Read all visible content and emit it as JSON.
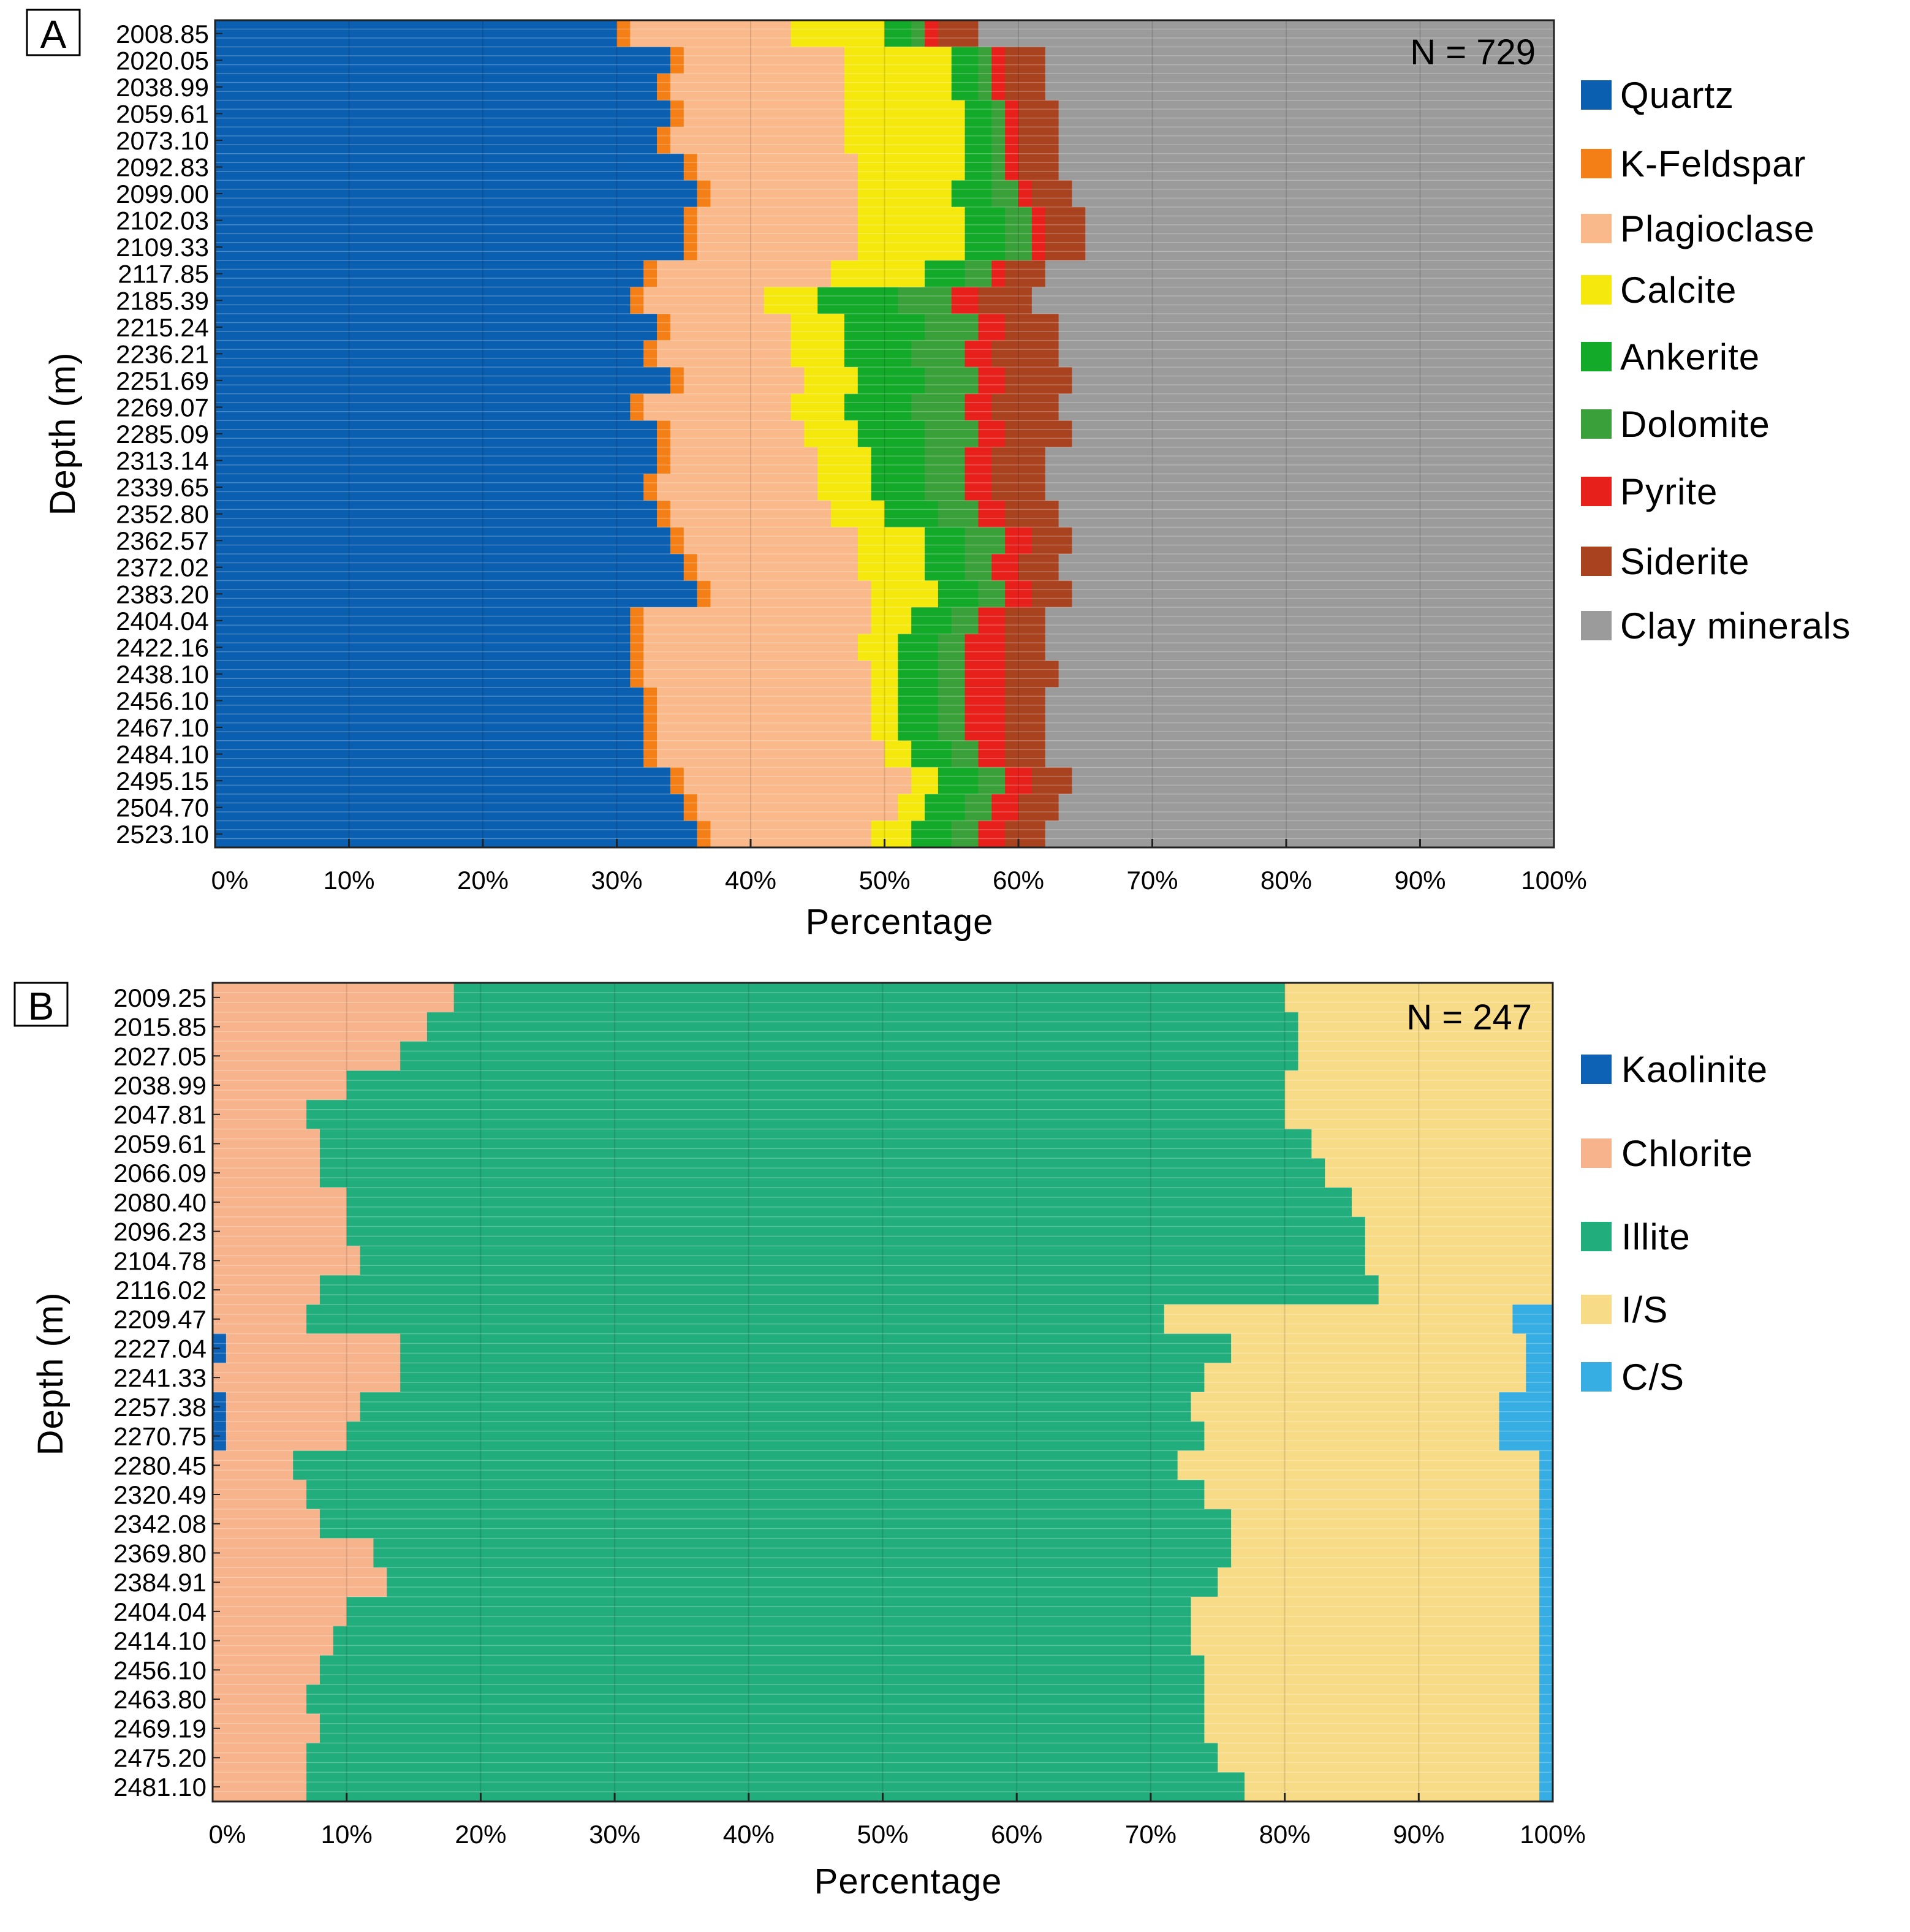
{
  "figure": {
    "panels": [
      "A",
      "B"
    ]
  },
  "chart_data": [
    {
      "type": "bar",
      "orientation": "horizontal-stacked",
      "panel": "A",
      "n_label": "N = 729",
      "xlabel": "Percentage",
      "ylabel": "Depth (m)",
      "xlim": [
        0,
        100
      ],
      "x_ticks": [
        "0%",
        "10%",
        "20%",
        "30%",
        "40%",
        "50%",
        "60%",
        "70%",
        "80%",
        "90%",
        "100%"
      ],
      "y_tick_labels": [
        "2008.85",
        "2020.05",
        "2038.99",
        "2059.61",
        "2073.10",
        "2092.83",
        "2099.00",
        "2102.03",
        "2109.33",
        "2117.85",
        "2185.39",
        "2215.24",
        "2236.21",
        "2251.69",
        "2269.07",
        "2285.09",
        "2313.14",
        "2339.65",
        "2352.80",
        "2362.57",
        "2372.02",
        "2383.20",
        "2404.04",
        "2422.16",
        "2438.10",
        "2456.10",
        "2467.10",
        "2484.10",
        "2495.15",
        "2504.70",
        "2523.10"
      ],
      "series": [
        {
          "name": "Quartz",
          "color": "#0a5fb0",
          "values": [
            30,
            34,
            33,
            34,
            33,
            35,
            36,
            35,
            35,
            32,
            31,
            33,
            32,
            34,
            31,
            33,
            33,
            32,
            33,
            34,
            35,
            36,
            31,
            31,
            31,
            32,
            32,
            32,
            34,
            35,
            36
          ]
        },
        {
          "name": "K-Feldspar",
          "color": "#f57f17",
          "values": [
            1,
            1,
            1,
            1,
            1,
            1,
            1,
            1,
            1,
            1,
            1,
            1,
            1,
            1,
            1,
            1,
            1,
            1,
            1,
            1,
            1,
            1,
            1,
            1,
            1,
            1,
            1,
            1,
            1,
            1,
            1
          ]
        },
        {
          "name": "Plagioclase",
          "color": "#f9b98a",
          "values": [
            12,
            12,
            13,
            12,
            13,
            12,
            11,
            12,
            12,
            13,
            9,
            9,
            10,
            9,
            11,
            10,
            11,
            12,
            12,
            13,
            12,
            12,
            17,
            16,
            17,
            16,
            16,
            17,
            17,
            15,
            12
          ]
        },
        {
          "name": "Calcite",
          "color": "#f5e80c",
          "values": [
            7,
            8,
            8,
            9,
            9,
            8,
            7,
            8,
            8,
            7,
            4,
            4,
            4,
            4,
            4,
            4,
            4,
            4,
            4,
            5,
            5,
            5,
            3,
            3,
            2,
            2,
            2,
            2,
            2,
            2,
            3
          ]
        },
        {
          "name": "Ankerite",
          "color": "#13aa2a",
          "values": [
            2,
            2,
            2,
            2,
            2,
            2,
            3,
            3,
            3,
            3,
            6,
            6,
            5,
            5,
            5,
            5,
            4,
            4,
            4,
            3,
            3,
            3,
            3,
            3,
            3,
            3,
            3,
            3,
            3,
            3,
            3
          ]
        },
        {
          "name": "Dolomite",
          "color": "#3aa13a",
          "values": [
            1,
            1,
            1,
            1,
            1,
            1,
            2,
            2,
            2,
            2,
            4,
            4,
            4,
            4,
            4,
            4,
            3,
            3,
            3,
            3,
            2,
            2,
            2,
            2,
            2,
            2,
            2,
            2,
            2,
            2,
            2
          ]
        },
        {
          "name": "Pyrite",
          "color": "#e8201b",
          "values": [
            1,
            1,
            1,
            1,
            1,
            1,
            1,
            1,
            1,
            1,
            2,
            2,
            2,
            2,
            2,
            2,
            2,
            2,
            2,
            2,
            2,
            2,
            2,
            3,
            3,
            3,
            3,
            2,
            2,
            2,
            2
          ]
        },
        {
          "name": "Siderite",
          "color": "#a8421f",
          "values": [
            3,
            3,
            3,
            3,
            3,
            3,
            3,
            3,
            3,
            3,
            4,
            4,
            5,
            5,
            5,
            5,
            4,
            4,
            4,
            3,
            3,
            3,
            3,
            3,
            4,
            3,
            3,
            3,
            3,
            3,
            3
          ]
        },
        {
          "name": "Clay minerals",
          "color": "#9b9b9b",
          "values": [
            43,
            38,
            38,
            37,
            37,
            37,
            36,
            35,
            35,
            38,
            39,
            37,
            37,
            36,
            37,
            36,
            38,
            38,
            37,
            36,
            37,
            36,
            38,
            38,
            37,
            38,
            38,
            38,
            36,
            37,
            38
          ]
        }
      ]
    },
    {
      "type": "bar",
      "orientation": "horizontal-stacked",
      "panel": "B",
      "n_label": "N = 247",
      "xlabel": "Percentage",
      "ylabel": "Depth (m)",
      "xlim": [
        0,
        100
      ],
      "x_ticks": [
        "0%",
        "10%",
        "20%",
        "30%",
        "40%",
        "50%",
        "60%",
        "70%",
        "80%",
        "90%",
        "100%"
      ],
      "y_tick_labels": [
        "2009.25",
        "2015.85",
        "2027.05",
        "2038.99",
        "2047.81",
        "2059.61",
        "2066.09",
        "2080.40",
        "2096.23",
        "2104.78",
        "2116.02",
        "2209.47",
        "2227.04",
        "2241.33",
        "2257.38",
        "2270.75",
        "2280.45",
        "2320.49",
        "2342.08",
        "2369.80",
        "2384.91",
        "2404.04",
        "2414.10",
        "2456.10",
        "2463.80",
        "2469.19",
        "2475.20",
        "2481.10"
      ],
      "series": [
        {
          "name": "Kaolinite",
          "color": "#0d62b5",
          "values": [
            0,
            0,
            0,
            0,
            0,
            0,
            0,
            0,
            0,
            0,
            0,
            0,
            1,
            0,
            1,
            1,
            0,
            0,
            0,
            0,
            0,
            0,
            0,
            0,
            0,
            0,
            0,
            0
          ]
        },
        {
          "name": "Chlorite",
          "color": "#f7b48c",
          "values": [
            18,
            16,
            14,
            10,
            7,
            8,
            8,
            10,
            10,
            11,
            8,
            7,
            13,
            14,
            10,
            9,
            6,
            7,
            8,
            12,
            13,
            10,
            9,
            8,
            7,
            8,
            7,
            7
          ]
        },
        {
          "name": "Illite",
          "color": "#22ad7d",
          "values": [
            62,
            65,
            67,
            70,
            73,
            74,
            75,
            75,
            76,
            75,
            79,
            64,
            62,
            60,
            62,
            64,
            66,
            67,
            68,
            64,
            62,
            63,
            64,
            66,
            67,
            66,
            68,
            70
          ]
        },
        {
          "name": "I/S",
          "color": "#f7db86",
          "values": [
            20,
            19,
            19,
            20,
            20,
            18,
            17,
            15,
            14,
            14,
            13,
            26,
            22,
            24,
            23,
            22,
            27,
            25,
            23,
            23,
            24,
            26,
            26,
            25,
            25,
            25,
            24,
            22
          ]
        },
        {
          "name": "C/S",
          "color": "#37aee3",
          "values": [
            0,
            0,
            0,
            0,
            0,
            0,
            0,
            0,
            0,
            0,
            0,
            3,
            2,
            2,
            4,
            4,
            1,
            1,
            1,
            1,
            1,
            1,
            1,
            1,
            1,
            1,
            1,
            1
          ]
        }
      ]
    }
  ]
}
